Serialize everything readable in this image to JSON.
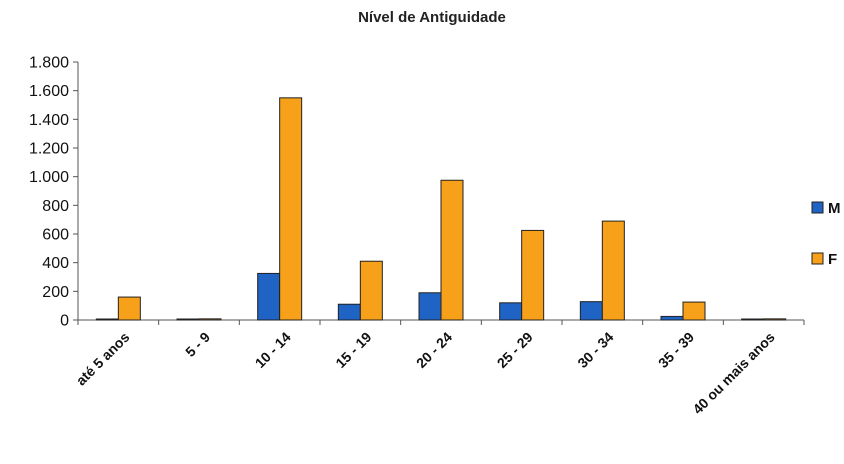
{
  "chart_data": {
    "type": "bar",
    "title": "Nível de Antiguidade",
    "xlabel": "",
    "ylabel": "",
    "categories": [
      "até 5 anos",
      "5 - 9",
      "10 - 14",
      "15 - 19",
      "20 - 24",
      "25 - 29",
      "30 - 34",
      "35 - 39",
      "40 ou mais anos"
    ],
    "series": [
      {
        "name": "M",
        "color": "#1f63c4",
        "values": [
          3,
          2,
          325,
          110,
          190,
          120,
          128,
          25,
          3
        ]
      },
      {
        "name": "F",
        "color": "#f7a11a",
        "values": [
          160,
          8,
          1550,
          410,
          975,
          625,
          690,
          125,
          8
        ]
      }
    ],
    "ylim": [
      0,
      1800
    ],
    "yticks": [
      0,
      200,
      400,
      600,
      800,
      1000,
      1200,
      1400,
      1600,
      1800
    ],
    "ytick_labels": [
      "0",
      "200",
      "400",
      "600",
      "800",
      "1.000",
      "1.200",
      "1.400",
      "1.600",
      "1.800"
    ],
    "grid": false,
    "legend_position": "right"
  }
}
